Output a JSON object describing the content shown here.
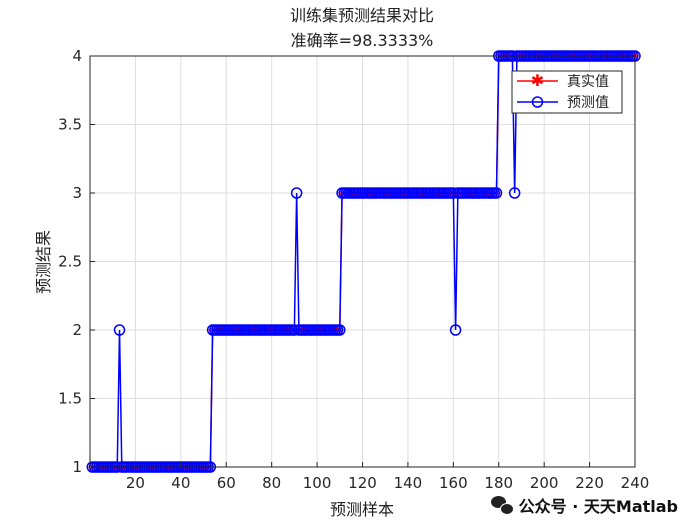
{
  "chart_data": {
    "type": "line",
    "title": "训练集预测结果对比",
    "subtitle": "准确率=98.3333%",
    "xlabel": "预测样本",
    "ylabel": "预测结果",
    "xlim": [
      0,
      240
    ],
    "ylim": [
      1,
      4
    ],
    "xticks": [
      20,
      40,
      60,
      80,
      100,
      120,
      140,
      160,
      180,
      200,
      220,
      240
    ],
    "yticks": [
      1,
      1.5,
      2,
      2.5,
      3,
      3.5,
      4
    ],
    "xtick_labels": [
      "20",
      "40",
      "60",
      "80",
      "100",
      "120",
      "140",
      "160",
      "180",
      "200",
      "220",
      "240"
    ],
    "ytick_labels": [
      "1",
      "1.5",
      "2",
      "2.5",
      "3",
      "3.5",
      "4"
    ],
    "grid": true,
    "legend_position": "top-right",
    "segments_true": [
      {
        "from": 1,
        "to": 53,
        "value": 1
      },
      {
        "from": 54,
        "to": 110,
        "value": 2
      },
      {
        "from": 111,
        "to": 179,
        "value": 3
      },
      {
        "from": 180,
        "to": 240,
        "value": 4
      }
    ],
    "series": [
      {
        "name": "真实值",
        "color": "#ff0000",
        "marker": "asterisk",
        "source": "segments_true",
        "overrides": []
      },
      {
        "name": "预测值",
        "color": "#0000ff",
        "marker": "circle",
        "source": "segments_true",
        "overrides": [
          {
            "x": 13,
            "y": 2
          },
          {
            "x": 91,
            "y": 3
          },
          {
            "x": 161,
            "y": 2
          },
          {
            "x": 187,
            "y": 3
          }
        ]
      }
    ]
  },
  "watermark": {
    "text": "公众号 · 天天Matlab",
    "icon": "wechat-icon"
  }
}
